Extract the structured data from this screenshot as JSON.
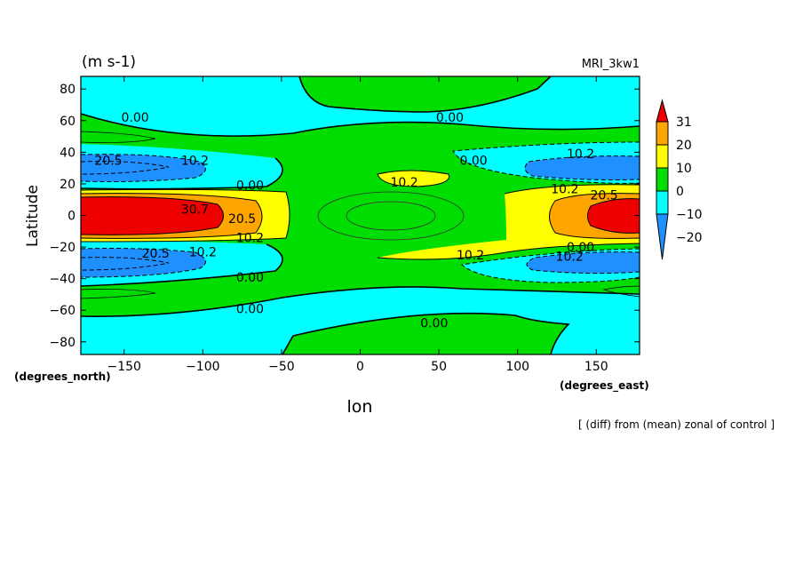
{
  "chart_data": {
    "type": "contour",
    "units_label": "(m s-1)",
    "model_label": "MRI_3kw1",
    "xlabel": "lon",
    "ylabel": "Latitude",
    "x_unit_note": "(degrees_east)",
    "y_unit_note": "(degrees_north)",
    "footer": "[ (diff) from (mean) zonal of control ]",
    "xlim": [
      -177.5,
      177.5
    ],
    "ylim": [
      -88,
      88
    ],
    "x_ticks": [
      -150,
      -100,
      -50,
      0,
      50,
      100,
      150
    ],
    "x_tick_labels": [
      "−150",
      "−100",
      "−50",
      "0",
      "50",
      "100",
      "150"
    ],
    "y_ticks": [
      80,
      60,
      40,
      20,
      0,
      -20,
      -40,
      -60,
      -80
    ],
    "y_tick_labels": [
      "80",
      "60",
      "40",
      "20",
      "0",
      "−20",
      "−40",
      "−60",
      "−80"
    ],
    "colorbar": {
      "labels": [
        "31",
        "20",
        "10",
        "0",
        "−10",
        "−20"
      ],
      "levels": [
        31,
        20,
        10,
        0,
        -10,
        -20
      ],
      "colors": [
        "#ee0000",
        "#ffa500",
        "#ffff00",
        "#00dd00",
        "#00ffff",
        "#1e90ff"
      ]
    },
    "colors": {
      "red": "#ee0000",
      "orange": "#ffa500",
      "yellow": "#ffff00",
      "green": "#00dd00",
      "cyan": "#00ffff",
      "blue": "#1e90ff"
    },
    "contour_labels": [
      {
        "text": "0.00",
        "lon": -143,
        "lat": 62
      },
      {
        "text": "0.00",
        "lon": 57,
        "lat": 62
      },
      {
        "text": "20.5",
        "lon": -160,
        "lat": 35
      },
      {
        "text": "10.2",
        "lon": -105,
        "lat": 35
      },
      {
        "text": "0.00",
        "lon": -70,
        "lat": 19
      },
      {
        "text": "10.2",
        "lon": 28,
        "lat": 21
      },
      {
        "text": "0.00",
        "lon": 72,
        "lat": 35
      },
      {
        "text": "10.2",
        "lon": 140,
        "lat": 39
      },
      {
        "text": "10.2",
        "lon": 130,
        "lat": 17
      },
      {
        "text": "20.5",
        "lon": 155,
        "lat": 13
      },
      {
        "text": "30.7",
        "lon": -105,
        "lat": 4
      },
      {
        "text": "20.5",
        "lon": -75,
        "lat": -2
      },
      {
        "text": "10.2",
        "lon": -70,
        "lat": -14
      },
      {
        "text": "20.5",
        "lon": -130,
        "lat": -24
      },
      {
        "text": "10.2",
        "lon": -100,
        "lat": -23
      },
      {
        "text": "0.00",
        "lon": -70,
        "lat": -39
      },
      {
        "text": "10.2",
        "lon": 70,
        "lat": -25
      },
      {
        "text": "0.00",
        "lon": 140,
        "lat": -20
      },
      {
        "text": "10.2",
        "lon": 133,
        "lat": -26
      },
      {
        "text": "0.00",
        "lon": -70,
        "lat": -59
      },
      {
        "text": "0.00",
        "lon": 47,
        "lat": -68
      }
    ]
  }
}
